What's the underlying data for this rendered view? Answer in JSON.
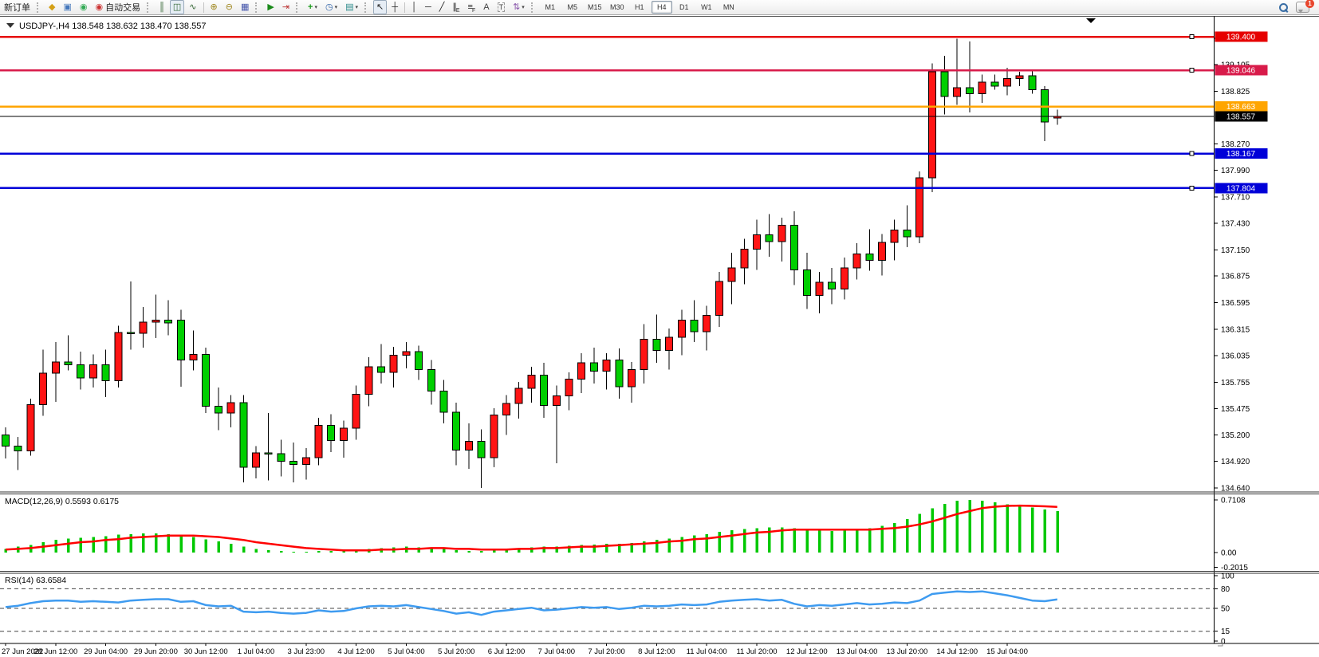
{
  "toolbar": {
    "new_order_label": "新订单",
    "auto_trading_label": "自动交易",
    "timeframes": [
      "M1",
      "M5",
      "M15",
      "M30",
      "H1",
      "H4",
      "D1",
      "W1",
      "MN"
    ],
    "active_timeframe": "H4",
    "notification_count": "1",
    "items": [
      {
        "t": "btn",
        "name": "new-order-button",
        "label": "新订单"
      },
      {
        "t": "grip",
        "name": "toolbar-grip"
      },
      {
        "t": "icon",
        "name": "profiles-icon",
        "glyph": "◆",
        "color": "#d4a017"
      },
      {
        "t": "icon",
        "name": "terminals-icon",
        "glyph": "▣",
        "color": "#4477bb"
      },
      {
        "t": "icon",
        "name": "signals-icon",
        "glyph": "◉",
        "color": "#33aa55"
      },
      {
        "t": "btn",
        "name": "auto-trading-button",
        "label": "自动交易",
        "glyph": "◉",
        "color": "#cc3333"
      },
      {
        "t": "grip",
        "name": "toolbar-grip"
      },
      {
        "t": "icon",
        "name": "bar-chart-icon",
        "glyph": "║",
        "color": "#336633"
      },
      {
        "t": "icon",
        "name": "candlestick-chart-icon",
        "glyph": "◫",
        "color": "#336633",
        "pressed": true
      },
      {
        "t": "icon",
        "name": "line-chart-icon",
        "glyph": "∿",
        "color": "#336633"
      },
      {
        "t": "sep",
        "name": "toolbar-separator"
      },
      {
        "t": "icon",
        "name": "zoom-in-icon",
        "glyph": "⊕",
        "color": "#a08820"
      },
      {
        "t": "icon",
        "name": "zoom-out-icon",
        "glyph": "⊖",
        "color": "#a08820"
      },
      {
        "t": "icon",
        "name": "tile-windows-icon",
        "glyph": "▦",
        "color": "#4455aa"
      },
      {
        "t": "grip",
        "name": "toolbar-grip"
      },
      {
        "t": "icon",
        "name": "auto-scroll-icon",
        "glyph": "▶",
        "color": "#1a8a1a"
      },
      {
        "t": "icon",
        "name": "chart-shift-icon",
        "glyph": "⇥",
        "color": "#bb3333"
      },
      {
        "t": "grip",
        "name": "toolbar-grip"
      },
      {
        "t": "icon",
        "name": "indicators-icon",
        "glyph": "+",
        "color": "#1a9a1a",
        "caret": true,
        "bold": true
      },
      {
        "t": "icon",
        "name": "periods-icon",
        "glyph": "◷",
        "color": "#3366aa",
        "caret": true
      },
      {
        "t": "icon",
        "name": "templates-icon",
        "glyph": "▤",
        "color": "#2a8a8a",
        "caret": true
      },
      {
        "t": "grip",
        "name": "toolbar-grip"
      },
      {
        "t": "icon",
        "name": "cursor-icon",
        "glyph": "↖",
        "color": "#222",
        "pressed": true
      },
      {
        "t": "icon",
        "name": "crosshair-icon",
        "glyph": "┼",
        "color": "#222"
      },
      {
        "t": "sep",
        "name": "toolbar-separator"
      },
      {
        "t": "icon",
        "name": "vertical-line-icon",
        "glyph": "│",
        "color": "#222"
      },
      {
        "t": "icon",
        "name": "horizontal-line-icon",
        "glyph": "─",
        "color": "#222"
      },
      {
        "t": "icon",
        "name": "trendline-icon",
        "glyph": "╱",
        "color": "#222"
      },
      {
        "t": "icon",
        "name": "equidistant-channel-icon",
        "glyph": "∥",
        "color": "#222",
        "sub": "E"
      },
      {
        "t": "icon",
        "name": "fibonacci-icon",
        "glyph": "≡",
        "color": "#222",
        "sub": "F"
      },
      {
        "t": "icon",
        "name": "text-icon",
        "glyph": "A",
        "color": "#444"
      },
      {
        "t": "icon",
        "name": "text-label-icon",
        "glyph": "T",
        "color": "#444",
        "boxed": true
      },
      {
        "t": "icon",
        "name": "arrows-icon",
        "glyph": "⇅",
        "color": "#8855aa",
        "caret": true
      },
      {
        "t": "grip",
        "name": "toolbar-grip"
      },
      {
        "t": "tfs"
      },
      {
        "t": "spacer"
      },
      {
        "t": "search",
        "name": "search-symbols-icon"
      },
      {
        "t": "chat",
        "name": "notifications-icon"
      }
    ]
  },
  "chart_title": "USDJPY-,H4  138.548 138.632 138.470 138.557",
  "chart_data": {
    "type": "candlestick",
    "symbol": "USDJPY-",
    "timeframe": "H4",
    "ohlc_display": {
      "open": "138.548",
      "high": "138.632",
      "low": "138.470",
      "close": "138.557"
    },
    "colors": {
      "bull": "#ff1414",
      "bear": "#00cf00",
      "wick": "#000000",
      "macd_hist": "#00c800",
      "macd_signal": "#ff0000",
      "rsi_line": "#3e9bf0",
      "axis_text": "#000000"
    },
    "price_axis": {
      "min": 134.64,
      "max": 139.4,
      "ticks": [
        "139.385",
        "139.105",
        "138.825",
        "138.270",
        "137.990",
        "137.710",
        "137.430",
        "137.150",
        "136.875",
        "136.595",
        "136.315",
        "136.035",
        "135.755",
        "135.475",
        "135.200",
        "134.920",
        "134.640"
      ]
    },
    "hlines": [
      {
        "price": 139.4,
        "label": "139.400",
        "color": "#e60000",
        "handle": true,
        "current": false
      },
      {
        "price": 139.046,
        "label": "139.046",
        "color": "#d81b4a",
        "handle": true,
        "current": false
      },
      {
        "price": 138.663,
        "label": "138.663",
        "color": "#ffa500",
        "handle": false,
        "current": false
      },
      {
        "price": 138.557,
        "label": "138.557",
        "color": "#000000",
        "handle": false,
        "current": true
      },
      {
        "price": 138.167,
        "label": "138.167",
        "color": "#0000d8",
        "handle": true,
        "current": false
      },
      {
        "price": 137.804,
        "label": "137.804",
        "color": "#0000d8",
        "handle": true,
        "current": false
      }
    ],
    "time_labels": [
      "27 Jun 2022",
      "28 Jun 12:00",
      "29 Jun 04:00",
      "29 Jun 20:00",
      "30 Jun 12:00",
      "1 Jul 04:00",
      "3 Jul 23:00",
      "4 Jul 12:00",
      "5 Jul 04:00",
      "5 Jul 20:00",
      "6 Jul 12:00",
      "7 Jul 04:00",
      "7 Jul 20:00",
      "8 Jul 12:00",
      "11 Jul 04:00",
      "11 Jul 20:00",
      "12 Jul 12:00",
      "13 Jul 04:00",
      "13 Jul 20:00",
      "14 Jul 12:00",
      "15 Jul 04:00"
    ],
    "candles": [
      [
        135.2,
        135.28,
        134.95,
        135.08
      ],
      [
        135.08,
        135.18,
        134.83,
        135.03
      ],
      [
        135.03,
        135.58,
        134.98,
        135.52
      ],
      [
        135.52,
        136.1,
        135.4,
        135.85
      ],
      [
        135.85,
        136.18,
        135.55,
        135.97
      ],
      [
        135.97,
        136.25,
        135.88,
        135.94
      ],
      [
        135.94,
        136.08,
        135.68,
        135.8
      ],
      [
        135.8,
        136.05,
        135.7,
        135.94
      ],
      [
        135.94,
        136.1,
        135.6,
        135.77
      ],
      [
        135.77,
        136.35,
        135.7,
        136.28
      ],
      [
        136.28,
        136.82,
        136.1,
        136.27
      ],
      [
        136.27,
        136.55,
        136.12,
        136.39
      ],
      [
        136.39,
        136.68,
        136.22,
        136.41
      ],
      [
        136.41,
        136.62,
        136.25,
        136.38
      ],
      [
        136.41,
        136.52,
        135.71,
        135.99
      ],
      [
        135.99,
        136.3,
        135.88,
        136.05
      ],
      [
        136.05,
        136.12,
        135.43,
        135.5
      ],
      [
        135.5,
        135.7,
        135.25,
        135.43
      ],
      [
        135.43,
        135.62,
        135.28,
        135.54
      ],
      [
        135.54,
        135.62,
        134.7,
        134.86
      ],
      [
        134.86,
        135.08,
        134.74,
        135.01
      ],
      [
        135.01,
        135.43,
        134.72,
        135.0
      ],
      [
        135.0,
        135.15,
        134.76,
        134.92
      ],
      [
        134.92,
        135.12,
        134.7,
        134.89
      ],
      [
        134.89,
        135.06,
        134.73,
        134.96
      ],
      [
        134.96,
        135.38,
        134.88,
        135.3
      ],
      [
        135.3,
        135.42,
        135.02,
        135.14
      ],
      [
        135.14,
        135.35,
        134.96,
        135.27
      ],
      [
        135.27,
        135.72,
        135.15,
        135.63
      ],
      [
        135.63,
        136.02,
        135.5,
        135.92
      ],
      [
        135.92,
        136.16,
        135.74,
        135.86
      ],
      [
        135.86,
        136.13,
        135.7,
        136.04
      ],
      [
        136.04,
        136.18,
        135.9,
        136.08
      ],
      [
        136.08,
        136.14,
        135.78,
        135.89
      ],
      [
        135.89,
        135.99,
        135.52,
        135.66
      ],
      [
        135.66,
        135.78,
        135.32,
        135.44
      ],
      [
        135.44,
        135.54,
        134.88,
        135.04
      ],
      [
        135.04,
        135.32,
        134.84,
        135.13
      ],
      [
        135.13,
        135.26,
        134.64,
        134.96
      ],
      [
        134.96,
        135.48,
        134.86,
        135.41
      ],
      [
        135.41,
        135.62,
        135.2,
        135.53
      ],
      [
        135.53,
        135.76,
        135.37,
        135.69
      ],
      [
        135.69,
        135.92,
        135.54,
        135.83
      ],
      [
        135.83,
        135.96,
        135.38,
        135.51
      ],
      [
        135.51,
        135.72,
        134.9,
        135.61
      ],
      [
        135.61,
        135.86,
        135.46,
        135.79
      ],
      [
        135.79,
        136.06,
        135.64,
        135.96
      ],
      [
        135.96,
        136.12,
        135.74,
        135.87
      ],
      [
        135.87,
        136.06,
        135.68,
        135.99
      ],
      [
        135.99,
        136.11,
        135.58,
        135.71
      ],
      [
        135.71,
        135.97,
        135.54,
        135.89
      ],
      [
        135.89,
        136.37,
        135.74,
        136.21
      ],
      [
        136.21,
        136.47,
        135.96,
        136.09
      ],
      [
        136.09,
        136.32,
        135.89,
        136.23
      ],
      [
        136.23,
        136.52,
        136.04,
        136.41
      ],
      [
        136.41,
        136.62,
        136.18,
        136.29
      ],
      [
        136.29,
        136.56,
        136.09,
        136.46
      ],
      [
        136.46,
        136.92,
        136.34,
        136.82
      ],
      [
        136.82,
        137.12,
        136.58,
        136.96
      ],
      [
        136.96,
        137.27,
        136.79,
        137.16
      ],
      [
        137.16,
        137.47,
        136.94,
        137.31
      ],
      [
        137.31,
        137.53,
        137.08,
        137.24
      ],
      [
        137.24,
        137.49,
        137.03,
        137.41
      ],
      [
        137.41,
        137.56,
        136.78,
        136.94
      ],
      [
        136.94,
        137.12,
        136.53,
        136.67
      ],
      [
        136.67,
        136.92,
        136.48,
        136.81
      ],
      [
        136.81,
        136.96,
        136.58,
        136.74
      ],
      [
        136.74,
        137.07,
        136.63,
        136.96
      ],
      [
        136.96,
        137.22,
        136.84,
        137.11
      ],
      [
        137.11,
        137.37,
        136.93,
        137.04
      ],
      [
        137.04,
        137.32,
        136.88,
        137.23
      ],
      [
        137.23,
        137.47,
        137.04,
        137.36
      ],
      [
        137.36,
        137.62,
        137.18,
        137.29
      ],
      [
        137.29,
        137.98,
        137.22,
        137.91
      ],
      [
        137.91,
        139.12,
        137.76,
        139.03
      ],
      [
        139.03,
        139.2,
        138.58,
        138.77
      ],
      [
        138.77,
        139.38,
        138.68,
        138.86
      ],
      [
        138.86,
        139.35,
        138.6,
        138.8
      ],
      [
        138.8,
        139.0,
        138.7,
        138.92
      ],
      [
        138.92,
        139.0,
        138.84,
        138.88
      ],
      [
        138.88,
        139.07,
        138.78,
        138.96
      ],
      [
        138.96,
        139.03,
        138.88,
        138.99
      ],
      [
        138.99,
        139.04,
        138.8,
        138.84
      ],
      [
        138.84,
        138.88,
        138.3,
        138.5
      ],
      [
        138.548,
        138.632,
        138.47,
        138.557
      ]
    ],
    "macd": {
      "label": "MACD(12,26,9) 0.5593 0.6175",
      "main_value": 0.5593,
      "signal_value": 0.6175,
      "axis": [
        "0.7108",
        "0.00",
        "-0.2015"
      ],
      "values": [
        0.05,
        0.08,
        0.1,
        0.14,
        0.17,
        0.19,
        0.2,
        0.21,
        0.22,
        0.24,
        0.25,
        0.26,
        0.26,
        0.25,
        0.23,
        0.21,
        0.18,
        0.15,
        0.12,
        0.08,
        0.05,
        0.03,
        0.02,
        0.01,
        0.01,
        0.02,
        0.02,
        0.03,
        0.04,
        0.05,
        0.06,
        0.07,
        0.08,
        0.07,
        0.06,
        0.05,
        0.03,
        0.02,
        0.02,
        0.03,
        0.04,
        0.06,
        0.07,
        0.08,
        0.08,
        0.09,
        0.1,
        0.11,
        0.12,
        0.12,
        0.13,
        0.15,
        0.17,
        0.19,
        0.21,
        0.23,
        0.25,
        0.28,
        0.3,
        0.32,
        0.33,
        0.34,
        0.34,
        0.33,
        0.31,
        0.3,
        0.29,
        0.3,
        0.31,
        0.33,
        0.36,
        0.4,
        0.45,
        0.52,
        0.6,
        0.66,
        0.7,
        0.7108,
        0.7,
        0.68,
        0.65,
        0.63,
        0.61,
        0.58,
        0.5593
      ],
      "signal": [
        0.04,
        0.05,
        0.06,
        0.08,
        0.1,
        0.12,
        0.14,
        0.15,
        0.17,
        0.18,
        0.2,
        0.21,
        0.22,
        0.23,
        0.23,
        0.23,
        0.22,
        0.21,
        0.19,
        0.17,
        0.14,
        0.12,
        0.1,
        0.08,
        0.06,
        0.05,
        0.04,
        0.03,
        0.03,
        0.03,
        0.04,
        0.04,
        0.05,
        0.05,
        0.06,
        0.06,
        0.05,
        0.05,
        0.04,
        0.04,
        0.04,
        0.05,
        0.05,
        0.06,
        0.06,
        0.07,
        0.08,
        0.08,
        0.09,
        0.1,
        0.11,
        0.12,
        0.13,
        0.15,
        0.16,
        0.18,
        0.19,
        0.21,
        0.23,
        0.25,
        0.27,
        0.28,
        0.3,
        0.31,
        0.31,
        0.31,
        0.31,
        0.31,
        0.31,
        0.31,
        0.32,
        0.33,
        0.35,
        0.38,
        0.42,
        0.47,
        0.52,
        0.56,
        0.6,
        0.62,
        0.63,
        0.635,
        0.63,
        0.625,
        0.6175
      ]
    },
    "rsi": {
      "label": "RSI(14) 63.6584",
      "value": 63.6584,
      "levels": [
        80,
        50,
        15
      ],
      "axis": [
        "100",
        "80",
        "50",
        "15",
        "0"
      ],
      "values": [
        52,
        54,
        58,
        61,
        62,
        62,
        60,
        61,
        60,
        59,
        62,
        63,
        64,
        64,
        60,
        61,
        55,
        53,
        54,
        45,
        44,
        45,
        43,
        42,
        43,
        47,
        45,
        46,
        50,
        53,
        54,
        53,
        55,
        52,
        49,
        46,
        42,
        44,
        40,
        45,
        47,
        49,
        51,
        47,
        48,
        50,
        52,
        51,
        52,
        49,
        51,
        54,
        53,
        54,
        56,
        55,
        56,
        60,
        62,
        63,
        64,
        62,
        63,
        57,
        53,
        55,
        54,
        56,
        58,
        56,
        57,
        59,
        58,
        62,
        72,
        74,
        76,
        75,
        76,
        73,
        70,
        66,
        62,
        61,
        63.66
      ]
    }
  }
}
